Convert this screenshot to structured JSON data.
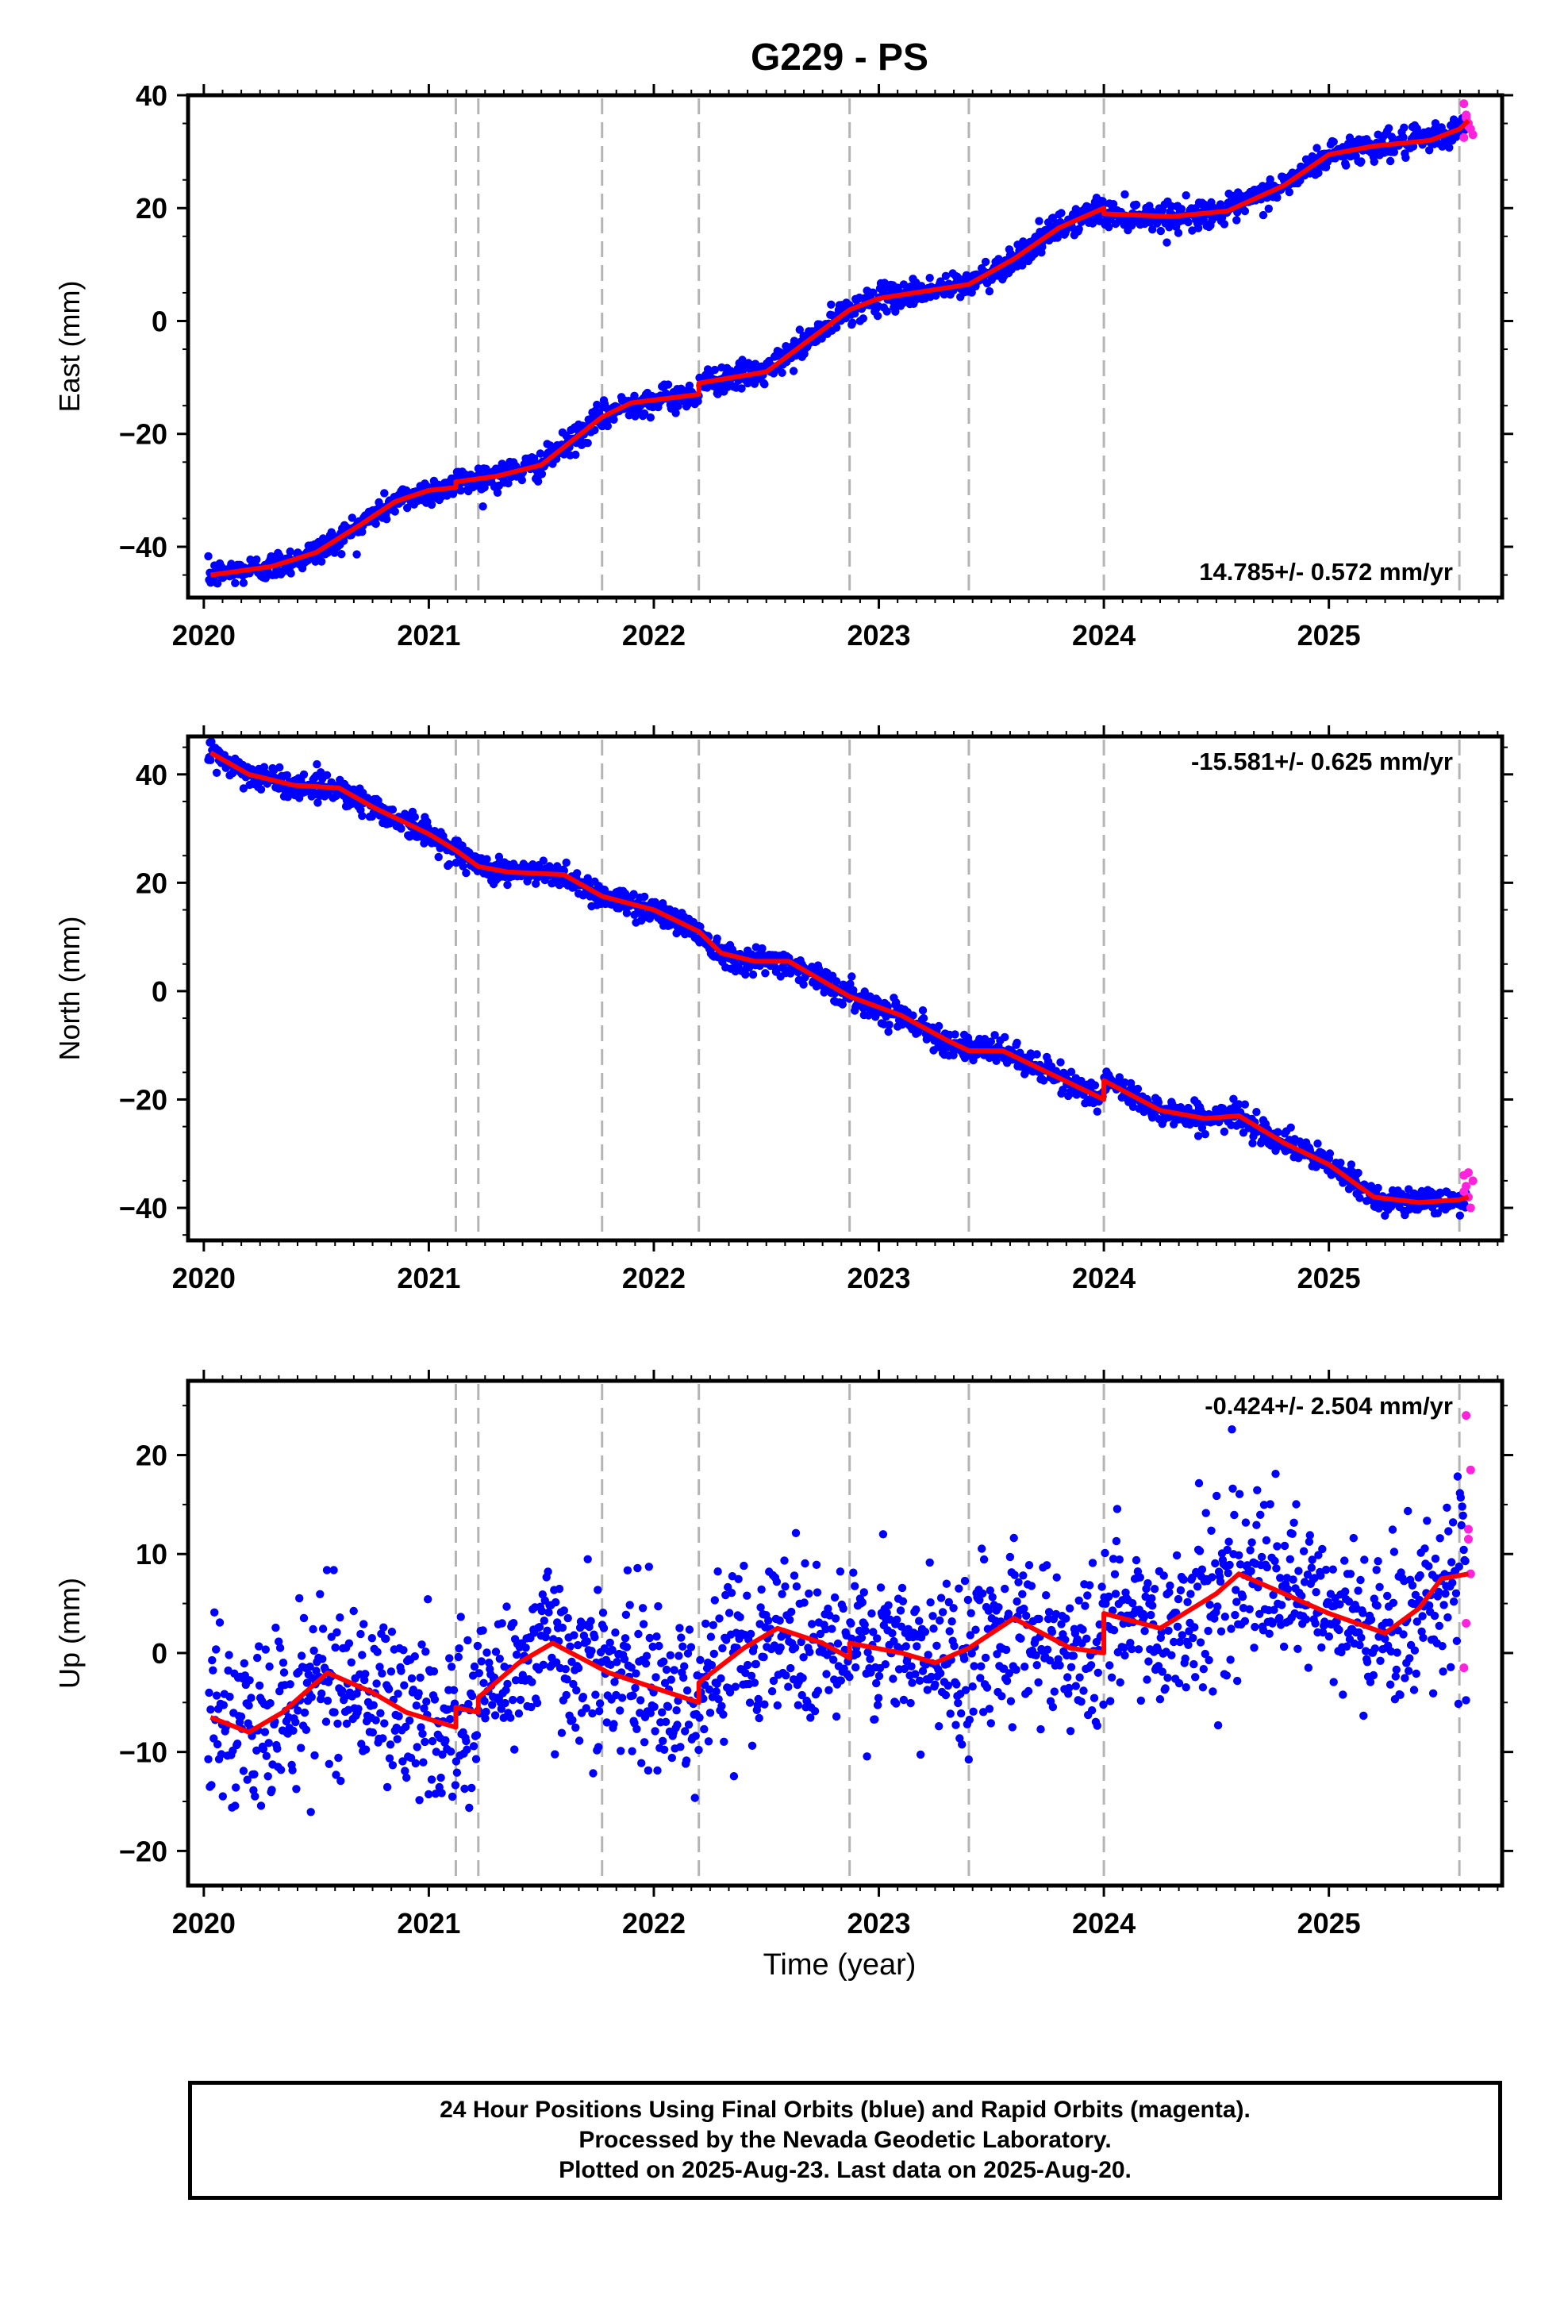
{
  "chart_data": {
    "type": "scatter",
    "title": "G229 - PS",
    "xlabel": "Time (year)",
    "x_ticks": [
      "2020",
      "2021",
      "2022",
      "2023",
      "2024",
      "2025"
    ],
    "xlim": [
      2019.93,
      2025.77
    ],
    "event_lines": [
      2021.12,
      2021.22,
      2021.77,
      2022.2,
      2022.87,
      2023.4,
      2024.0,
      2025.58
    ],
    "series_colors": {
      "final": "#0000ff",
      "rapid": "#ff22dd",
      "model": "#ff0000",
      "event": "#b4b4b4"
    },
    "panels": [
      {
        "component": "east",
        "ylabel": "East (mm)",
        "ylim": [
          -49,
          40
        ],
        "y_ticks": [
          40,
          20,
          0,
          -20,
          -40
        ],
        "y_tick_labels": [
          "40",
          "20",
          "0",
          "−20",
          "−40"
        ],
        "rate_label": "14.785+/- 0.572 mm/yr",
        "rate_position": "bottom-right",
        "scatter_sd": 1.2,
        "model": [
          [
            2020.03,
            -45
          ],
          [
            2020.3,
            -43.5
          ],
          [
            2020.5,
            -41
          ],
          [
            2020.7,
            -36
          ],
          [
            2020.85,
            -32
          ],
          [
            2021.0,
            -30
          ],
          [
            2021.12,
            -29.5
          ],
          [
            2021.12,
            -28.5
          ],
          [
            2021.3,
            -27.5
          ],
          [
            2021.5,
            -25.5
          ],
          [
            2021.77,
            -17
          ],
          [
            2021.9,
            -14.5
          ],
          [
            2022.2,
            -13
          ],
          [
            2022.2,
            -11
          ],
          [
            2022.5,
            -9
          ],
          [
            2022.87,
            2
          ],
          [
            2023.0,
            4
          ],
          [
            2023.4,
            6.5
          ],
          [
            2023.6,
            11
          ],
          [
            2023.8,
            16.5
          ],
          [
            2024.0,
            20
          ],
          [
            2024.0,
            19
          ],
          [
            2024.3,
            18.5
          ],
          [
            2024.55,
            19.5
          ],
          [
            2024.8,
            24
          ],
          [
            2025.0,
            29.5
          ],
          [
            2025.2,
            31
          ],
          [
            2025.45,
            32
          ],
          [
            2025.58,
            34
          ],
          [
            2025.62,
            35.5
          ]
        ],
        "rapid_points": [
          [
            2025.6,
            38.5
          ],
          [
            2025.61,
            36
          ],
          [
            2025.62,
            35
          ],
          [
            2025.63,
            34
          ],
          [
            2025.64,
            33
          ],
          [
            2025.6,
            32.5
          ],
          [
            2025.62,
            34.5
          ],
          [
            2025.61,
            36.5
          ]
        ]
      },
      {
        "component": "north",
        "ylabel": "North (mm)",
        "ylim": [
          -46,
          47
        ],
        "y_ticks": [
          40,
          20,
          0,
          -20,
          -40
        ],
        "y_tick_labels": [
          "40",
          "20",
          "0",
          "−20",
          "−40"
        ],
        "rate_label": "-15.581+/- 0.625 mm/yr",
        "rate_position": "top-right",
        "scatter_sd": 1.2,
        "model": [
          [
            2020.03,
            44
          ],
          [
            2020.2,
            40
          ],
          [
            2020.4,
            38
          ],
          [
            2020.6,
            37.5
          ],
          [
            2020.75,
            34
          ],
          [
            2021.0,
            29
          ],
          [
            2021.12,
            26
          ],
          [
            2021.22,
            23
          ],
          [
            2021.35,
            22
          ],
          [
            2021.6,
            21.5
          ],
          [
            2021.77,
            17.5
          ],
          [
            2022.0,
            15
          ],
          [
            2022.2,
            11
          ],
          [
            2022.3,
            7
          ],
          [
            2022.45,
            5.5
          ],
          [
            2022.6,
            5.5
          ],
          [
            2022.87,
            -1
          ],
          [
            2023.1,
            -4.5
          ],
          [
            2023.3,
            -9
          ],
          [
            2023.4,
            -11
          ],
          [
            2023.55,
            -11
          ],
          [
            2023.8,
            -16
          ],
          [
            2024.0,
            -20
          ],
          [
            2024.0,
            -16.5
          ],
          [
            2024.25,
            -22
          ],
          [
            2024.45,
            -23.5
          ],
          [
            2024.6,
            -23
          ],
          [
            2024.8,
            -28
          ],
          [
            2025.0,
            -32
          ],
          [
            2025.2,
            -38
          ],
          [
            2025.4,
            -39
          ],
          [
            2025.58,
            -38.5
          ],
          [
            2025.62,
            -38
          ]
        ],
        "rapid_points": [
          [
            2025.6,
            -34
          ],
          [
            2025.61,
            -36
          ],
          [
            2025.62,
            -38
          ],
          [
            2025.63,
            -40
          ],
          [
            2025.64,
            -35
          ],
          [
            2025.6,
            -37
          ],
          [
            2025.62,
            -33.5
          ]
        ]
      },
      {
        "component": "up",
        "ylabel": "Up (mm)",
        "ylim": [
          -23.5,
          27.5
        ],
        "y_ticks": [
          20,
          10,
          0,
          -10,
          -20
        ],
        "y_tick_labels": [
          "20",
          "10",
          "0",
          "−10",
          "−20"
        ],
        "rate_label": "-0.424+/- 2.504 mm/yr",
        "rate_position": "top-right",
        "scatter_sd": 4.2,
        "model": [
          [
            2020.03,
            -6.5
          ],
          [
            2020.2,
            -8
          ],
          [
            2020.35,
            -6
          ],
          [
            2020.55,
            -2
          ],
          [
            2020.75,
            -4
          ],
          [
            2020.9,
            -6
          ],
          [
            2021.12,
            -7.5
          ],
          [
            2021.12,
            -5.5
          ],
          [
            2021.22,
            -6
          ],
          [
            2021.22,
            -4.5
          ],
          [
            2021.4,
            -1
          ],
          [
            2021.55,
            1
          ],
          [
            2021.8,
            -2
          ],
          [
            2022.0,
            -3.5
          ],
          [
            2022.2,
            -5
          ],
          [
            2022.2,
            -3
          ],
          [
            2022.4,
            0.5
          ],
          [
            2022.55,
            2.5
          ],
          [
            2022.75,
            1
          ],
          [
            2022.87,
            -0.5
          ],
          [
            2022.87,
            1
          ],
          [
            2023.1,
            0
          ],
          [
            2023.25,
            -1
          ],
          [
            2023.4,
            0.5
          ],
          [
            2023.6,
            3.5
          ],
          [
            2023.85,
            0.5
          ],
          [
            2024.0,
            0
          ],
          [
            2024.0,
            4
          ],
          [
            2024.25,
            2.5
          ],
          [
            2024.5,
            6
          ],
          [
            2024.6,
            8
          ],
          [
            2024.75,
            6.5
          ],
          [
            2025.0,
            4
          ],
          [
            2025.25,
            2
          ],
          [
            2025.4,
            4.5
          ],
          [
            2025.5,
            7.5
          ],
          [
            2025.62,
            8
          ]
        ],
        "rapid_points": [
          [
            2025.61,
            24
          ],
          [
            2025.63,
            18.5
          ],
          [
            2025.62,
            12.5
          ],
          [
            2025.62,
            11.5
          ],
          [
            2025.63,
            8
          ],
          [
            2025.61,
            3
          ],
          [
            2025.6,
            -1.5
          ]
        ]
      }
    ]
  },
  "footer": {
    "line1": "24 Hour Positions Using Final Orbits (blue) and Rapid Orbits (magenta).",
    "line2": "Processed by the Nevada Geodetic Laboratory.",
    "line3": "Plotted on 2025-Aug-23. Last data on 2025-Aug-20."
  }
}
